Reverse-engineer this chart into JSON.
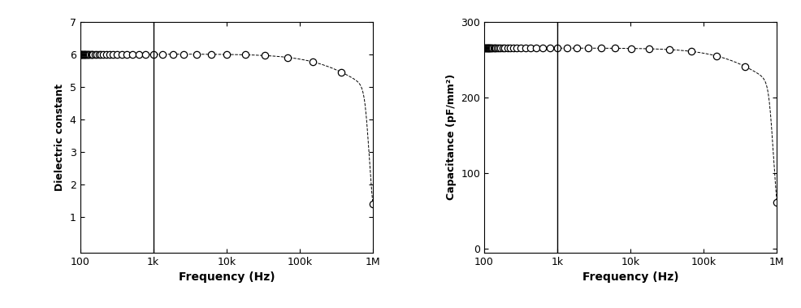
{
  "freq_min": 100,
  "freq_max": 1000000,
  "vline_freq": 1000,
  "left_ylabel": "Dielectric constant",
  "right_ylabel": "Capacitance (pF/mm²)",
  "xlabel": "Frequency (Hz)",
  "left_ylim": [
    -0.1,
    7
  ],
  "right_ylim": [
    -5,
    300
  ],
  "left_yticks": [
    1,
    2,
    3,
    4,
    5,
    6,
    7
  ],
  "right_yticks": [
    0,
    100,
    200,
    300
  ],
  "xtick_labels": [
    "100",
    "1k",
    "10k",
    "100k",
    "1M"
  ],
  "xtick_vals": [
    100,
    1000,
    10000,
    100000,
    1000000
  ],
  "marker": "o",
  "marker_size": 6,
  "line_style": "--",
  "line_color": "black",
  "line_width": 0.7,
  "marker_facecolor": "white",
  "marker_edgecolor": "black",
  "marker_edgewidth": 0.9,
  "vline_color": "black",
  "vline_lw": 1.0,
  "background_color": "white",
  "fig_width": 9.86,
  "fig_height": 3.79,
  "dpi": 100,
  "n_markers": 55,
  "dk_flat": 6.0,
  "cap_flat": 265.0
}
